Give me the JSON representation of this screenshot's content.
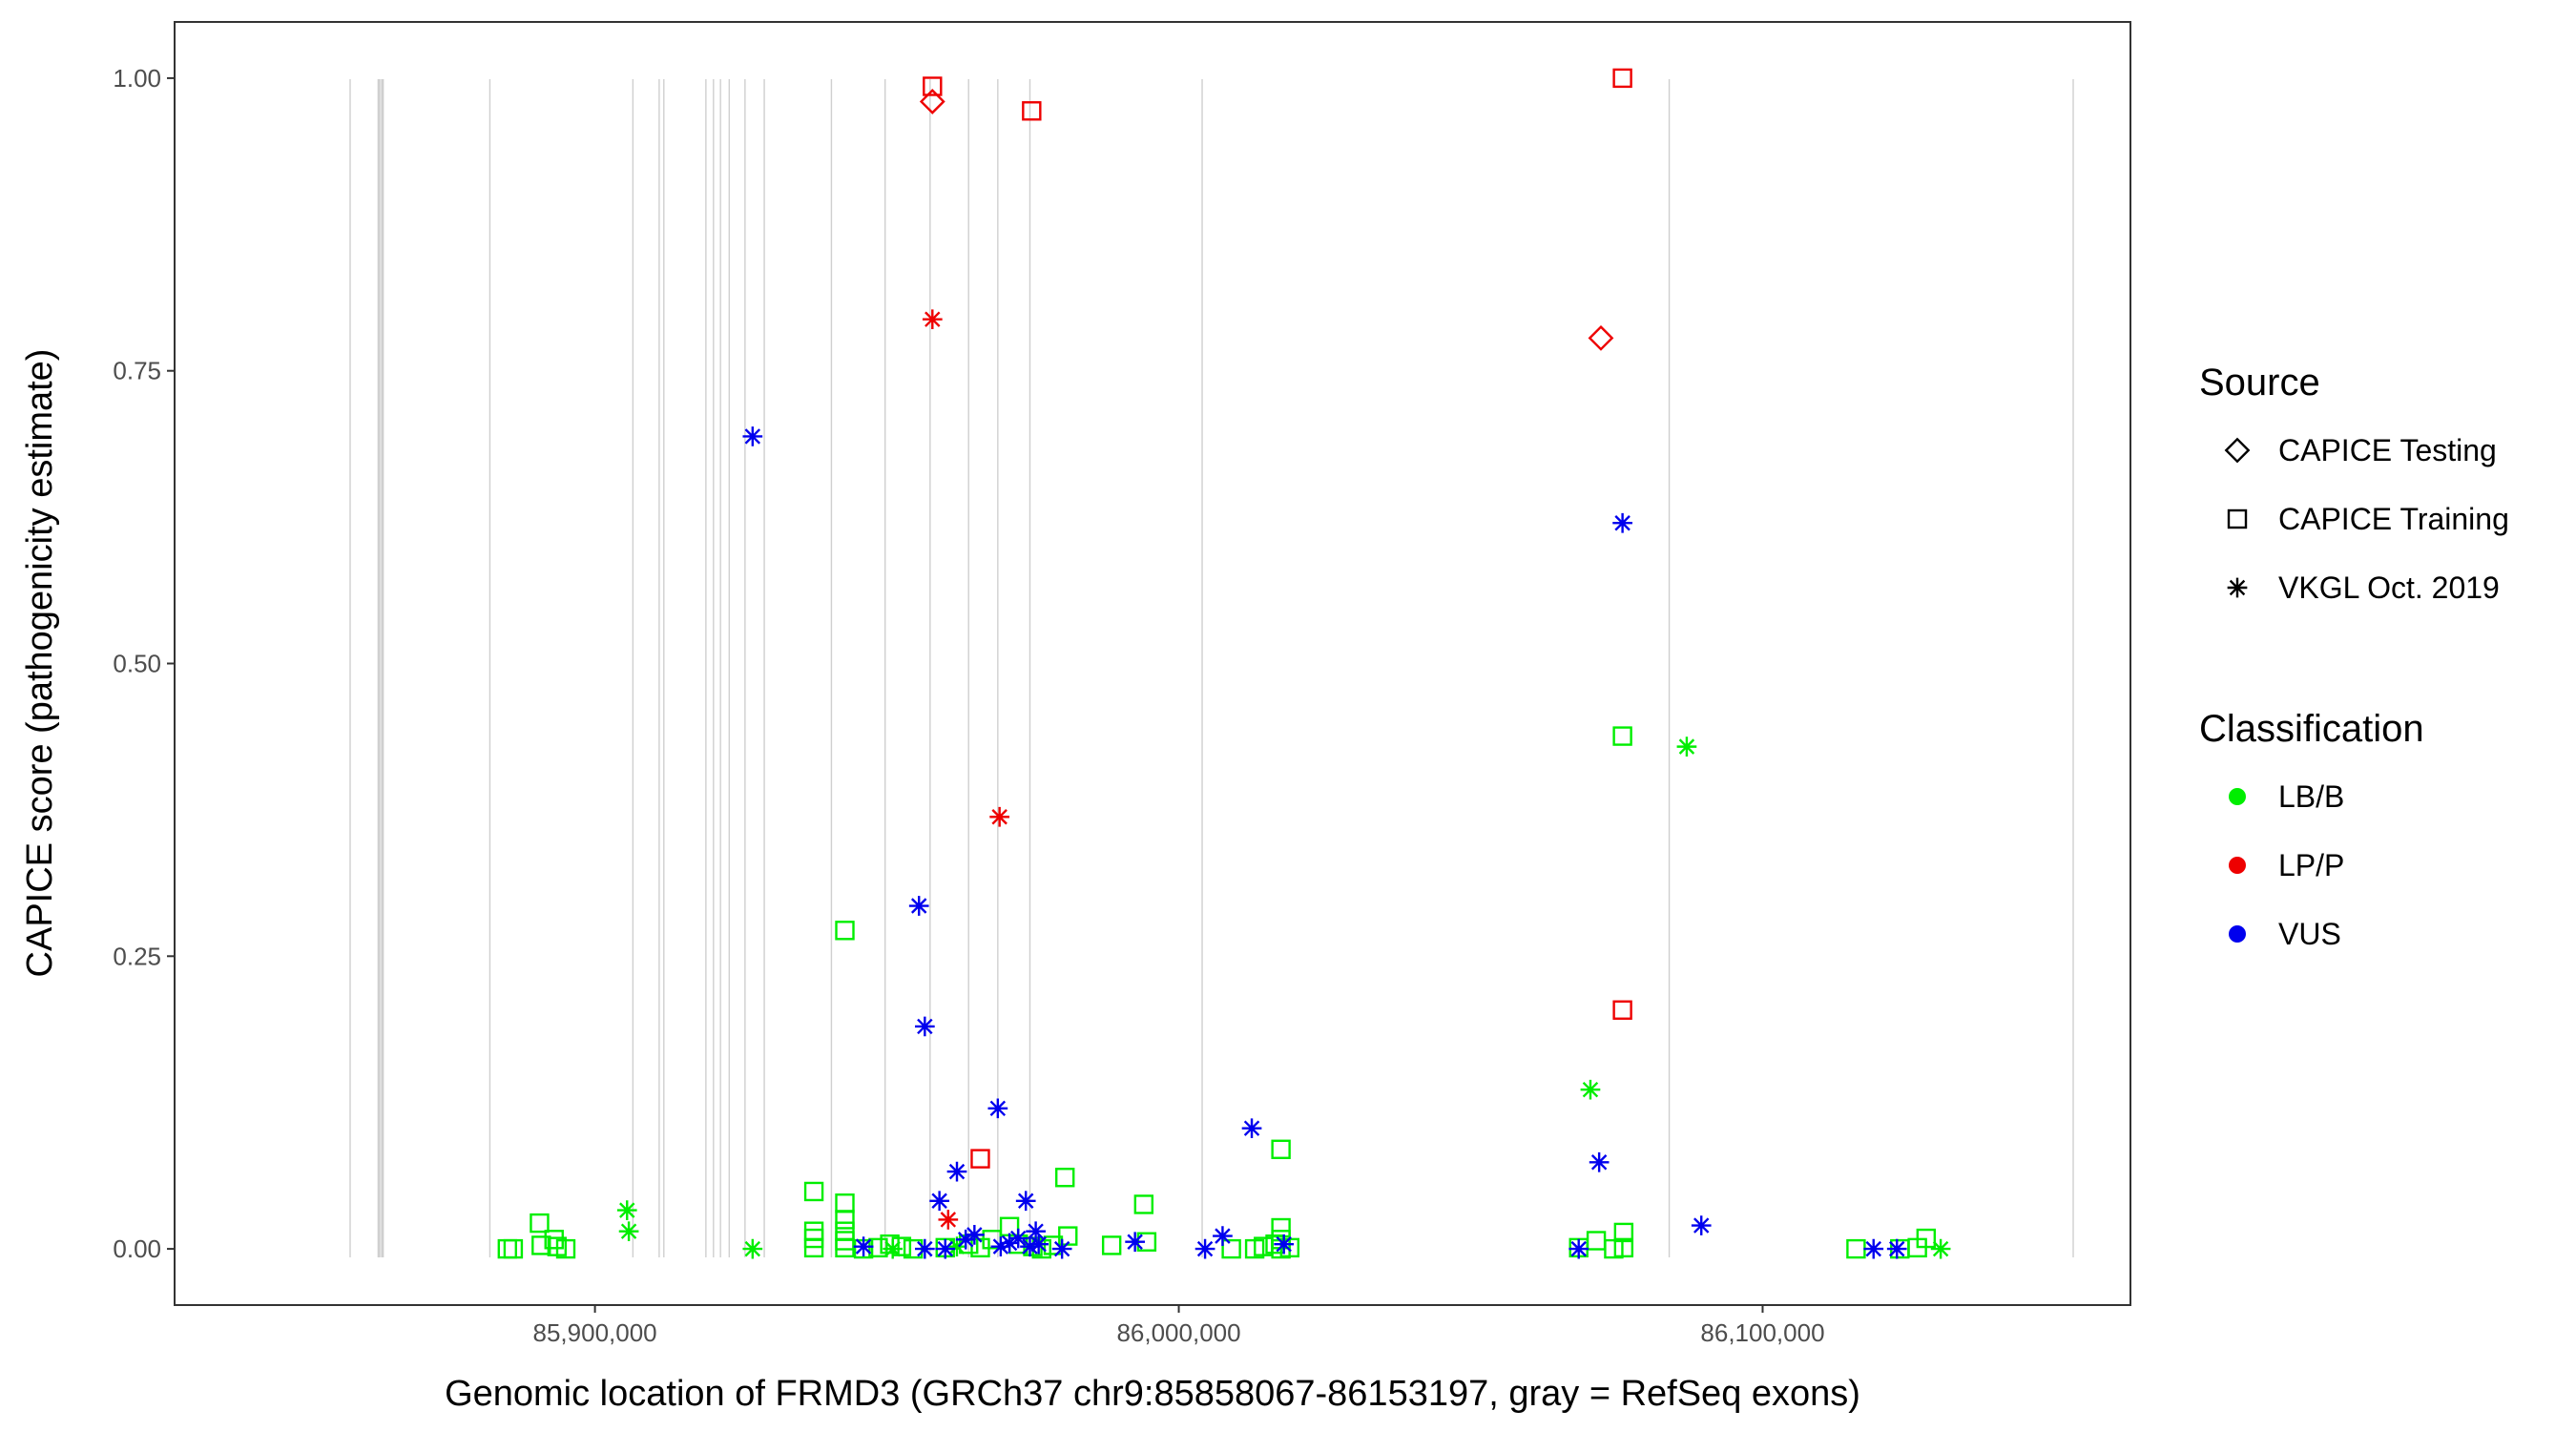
{
  "chart_data": {
    "type": "scatter",
    "title": "",
    "xlabel": "Genomic location of FRMD3 (GRCh37 chr9:85858067-86153197, gray = RefSeq exons)",
    "ylabel": "CAPICE score (pathogenicity estimate)",
    "xlim": [
      85828000,
      86163000
    ],
    "ylim": [
      -0.048,
      1.048
    ],
    "x_ticks": [
      85900000,
      86000000,
      86100000
    ],
    "x_tick_labels": [
      "85,900,000",
      "86,000,000",
      "86,100,000"
    ],
    "y_ticks": [
      0.0,
      0.25,
      0.5,
      0.75,
      1.0
    ],
    "y_tick_labels": [
      "0.00",
      "0.25",
      "0.50",
      "0.75",
      "1.00"
    ],
    "grid": false,
    "exon_lines": [
      85858067,
      85863000,
      85863600,
      85882000,
      85906500,
      85911000,
      85911800,
      85919000,
      85920300,
      85921500,
      85923000,
      85925700,
      85929000,
      85940500,
      85949700,
      85957400,
      85964000,
      85969000,
      85974500,
      86004000,
      86084000,
      86153197
    ],
    "legend": {
      "position": "right",
      "shape_title": "Source",
      "shape_entries": [
        {
          "label": "CAPICE Testing",
          "shape": "diamond"
        },
        {
          "label": "CAPICE Training",
          "shape": "square"
        },
        {
          "label": "VKGL Oct. 2019",
          "shape": "asterisk"
        }
      ],
      "color_title": "Classification",
      "color_entries": [
        {
          "label": "LB/B",
          "color": "#00ee00"
        },
        {
          "label": "LP/P",
          "color": "#ee0000"
        },
        {
          "label": "VUS",
          "color": "#0000ee"
        }
      ]
    },
    "series": [
      {
        "name": "LB/B",
        "color": "#00ee00",
        "points": [
          {
            "x": 85885000,
            "y": 0.0,
            "s": "square"
          },
          {
            "x": 85886000,
            "y": 0.0,
            "s": "square"
          },
          {
            "x": 85890500,
            "y": 0.022,
            "s": "square"
          },
          {
            "x": 85890800,
            "y": 0.003,
            "s": "square"
          },
          {
            "x": 85893000,
            "y": 0.008,
            "s": "square"
          },
          {
            "x": 85893500,
            "y": 0.002,
            "s": "square"
          },
          {
            "x": 85895000,
            "y": 0.0,
            "s": "square"
          },
          {
            "x": 85905500,
            "y": 0.033,
            "s": "asterisk"
          },
          {
            "x": 85905800,
            "y": 0.015,
            "s": "asterisk"
          },
          {
            "x": 85927000,
            "y": 0.0,
            "s": "asterisk"
          },
          {
            "x": 85937500,
            "y": 0.049,
            "s": "square"
          },
          {
            "x": 85937500,
            "y": 0.015,
            "s": "square"
          },
          {
            "x": 85937500,
            "y": 0.009,
            "s": "square"
          },
          {
            "x": 85937500,
            "y": 0.001,
            "s": "square"
          },
          {
            "x": 85942800,
            "y": 0.272,
            "s": "square"
          },
          {
            "x": 85942800,
            "y": 0.039,
            "s": "square"
          },
          {
            "x": 85942800,
            "y": 0.025,
            "s": "square"
          },
          {
            "x": 85942800,
            "y": 0.015,
            "s": "square"
          },
          {
            "x": 85942800,
            "y": 0.007,
            "s": "square"
          },
          {
            "x": 85942800,
            "y": 0.001,
            "s": "square"
          },
          {
            "x": 85946000,
            "y": 0.0,
            "s": "square"
          },
          {
            "x": 85948500,
            "y": 0.001,
            "s": "square"
          },
          {
            "x": 85950500,
            "y": 0.004,
            "s": "square"
          },
          {
            "x": 85951000,
            "y": 0.0,
            "s": "asterisk"
          },
          {
            "x": 85952500,
            "y": 0.002,
            "s": "square"
          },
          {
            "x": 85954500,
            "y": 0.0,
            "s": "square"
          },
          {
            "x": 85960000,
            "y": 0.001,
            "s": "square"
          },
          {
            "x": 85962000,
            "y": 0.002,
            "s": "asterisk"
          },
          {
            "x": 85964000,
            "y": 0.004,
            "s": "square"
          },
          {
            "x": 85966000,
            "y": 0.001,
            "s": "square"
          },
          {
            "x": 85968000,
            "y": 0.008,
            "s": "square"
          },
          {
            "x": 85971000,
            "y": 0.019,
            "s": "square"
          },
          {
            "x": 85972500,
            "y": 0.004,
            "s": "square"
          },
          {
            "x": 85975000,
            "y": 0.002,
            "s": "square"
          },
          {
            "x": 85976500,
            "y": 0.0,
            "s": "square"
          },
          {
            "x": 85978500,
            "y": 0.003,
            "s": "square"
          },
          {
            "x": 85980500,
            "y": 0.061,
            "s": "square"
          },
          {
            "x": 85981000,
            "y": 0.011,
            "s": "square"
          },
          {
            "x": 85988500,
            "y": 0.003,
            "s": "square"
          },
          {
            "x": 85994000,
            "y": 0.038,
            "s": "square"
          },
          {
            "x": 85994500,
            "y": 0.006,
            "s": "square"
          },
          {
            "x": 86009000,
            "y": 0.0,
            "s": "square"
          },
          {
            "x": 86013000,
            "y": 0.0,
            "s": "square"
          },
          {
            "x": 86014500,
            "y": 0.002,
            "s": "square"
          },
          {
            "x": 86016500,
            "y": 0.004,
            "s": "square"
          },
          {
            "x": 86017500,
            "y": 0.085,
            "s": "square"
          },
          {
            "x": 86017500,
            "y": 0.018,
            "s": "square"
          },
          {
            "x": 86017500,
            "y": 0.008,
            "s": "square"
          },
          {
            "x": 86017500,
            "y": 0.0,
            "s": "square"
          },
          {
            "x": 86019000,
            "y": 0.001,
            "s": "square"
          },
          {
            "x": 86068500,
            "y": 0.001,
            "s": "square"
          },
          {
            "x": 86070500,
            "y": 0.136,
            "s": "asterisk"
          },
          {
            "x": 86071500,
            "y": 0.007,
            "s": "square"
          },
          {
            "x": 86074500,
            "y": 0.0,
            "s": "square"
          },
          {
            "x": 86076000,
            "y": 0.438,
            "s": "square"
          },
          {
            "x": 86076200,
            "y": 0.014,
            "s": "square"
          },
          {
            "x": 86076200,
            "y": 0.001,
            "s": "square"
          },
          {
            "x": 86087000,
            "y": 0.429,
            "s": "asterisk"
          },
          {
            "x": 86116000,
            "y": 0.0,
            "s": "square"
          },
          {
            "x": 86123500,
            "y": 0.0,
            "s": "square"
          },
          {
            "x": 86126500,
            "y": 0.001,
            "s": "square"
          },
          {
            "x": 86128000,
            "y": 0.009,
            "s": "square"
          },
          {
            "x": 86130500,
            "y": 0.0,
            "s": "asterisk"
          }
        ]
      },
      {
        "name": "LP/P",
        "color": "#ee0000",
        "points": [
          {
            "x": 85957800,
            "y": 0.993,
            "s": "square"
          },
          {
            "x": 85957800,
            "y": 0.98,
            "s": "diamond"
          },
          {
            "x": 85957800,
            "y": 0.794,
            "s": "asterisk"
          },
          {
            "x": 85960500,
            "y": 0.025,
            "s": "asterisk"
          },
          {
            "x": 85966000,
            "y": 0.077,
            "s": "square"
          },
          {
            "x": 85969300,
            "y": 0.369,
            "s": "asterisk"
          },
          {
            "x": 85974800,
            "y": 0.972,
            "s": "square"
          },
          {
            "x": 86072300,
            "y": 0.778,
            "s": "diamond"
          },
          {
            "x": 86076000,
            "y": 1.0,
            "s": "square"
          },
          {
            "x": 86076000,
            "y": 0.204,
            "s": "square"
          }
        ]
      },
      {
        "name": "VUS",
        "color": "#0000ee",
        "points": [
          {
            "x": 85927000,
            "y": 0.694,
            "s": "asterisk"
          },
          {
            "x": 85946000,
            "y": 0.002,
            "s": "asterisk"
          },
          {
            "x": 85955500,
            "y": 0.293,
            "s": "asterisk"
          },
          {
            "x": 85956500,
            "y": 0.19,
            "s": "asterisk"
          },
          {
            "x": 85956500,
            "y": 0.0,
            "s": "asterisk"
          },
          {
            "x": 85959000,
            "y": 0.041,
            "s": "asterisk"
          },
          {
            "x": 85960000,
            "y": 0.0,
            "s": "asterisk"
          },
          {
            "x": 85962000,
            "y": 0.066,
            "s": "asterisk"
          },
          {
            "x": 85963500,
            "y": 0.008,
            "s": "asterisk"
          },
          {
            "x": 85965000,
            "y": 0.012,
            "s": "asterisk"
          },
          {
            "x": 85969000,
            "y": 0.12,
            "s": "asterisk"
          },
          {
            "x": 85969500,
            "y": 0.002,
            "s": "asterisk"
          },
          {
            "x": 85971000,
            "y": 0.005,
            "s": "asterisk"
          },
          {
            "x": 85972500,
            "y": 0.009,
            "s": "asterisk"
          },
          {
            "x": 85973800,
            "y": 0.041,
            "s": "asterisk"
          },
          {
            "x": 85974500,
            "y": 0.002,
            "s": "asterisk"
          },
          {
            "x": 85975500,
            "y": 0.015,
            "s": "asterisk"
          },
          {
            "x": 85976000,
            "y": 0.004,
            "s": "asterisk"
          },
          {
            "x": 85980000,
            "y": 0.0,
            "s": "asterisk"
          },
          {
            "x": 85992500,
            "y": 0.006,
            "s": "asterisk"
          },
          {
            "x": 86004500,
            "y": 0.0,
            "s": "asterisk"
          },
          {
            "x": 86007500,
            "y": 0.011,
            "s": "asterisk"
          },
          {
            "x": 86012500,
            "y": 0.103,
            "s": "asterisk"
          },
          {
            "x": 86018000,
            "y": 0.004,
            "s": "asterisk"
          },
          {
            "x": 86068500,
            "y": 0.0,
            "s": "asterisk"
          },
          {
            "x": 86072000,
            "y": 0.074,
            "s": "asterisk"
          },
          {
            "x": 86076000,
            "y": 0.62,
            "s": "asterisk"
          },
          {
            "x": 86089500,
            "y": 0.02,
            "s": "asterisk"
          },
          {
            "x": 86119000,
            "y": 0.0,
            "s": "asterisk"
          },
          {
            "x": 86123000,
            "y": 0.0,
            "s": "asterisk"
          }
        ]
      }
    ]
  }
}
